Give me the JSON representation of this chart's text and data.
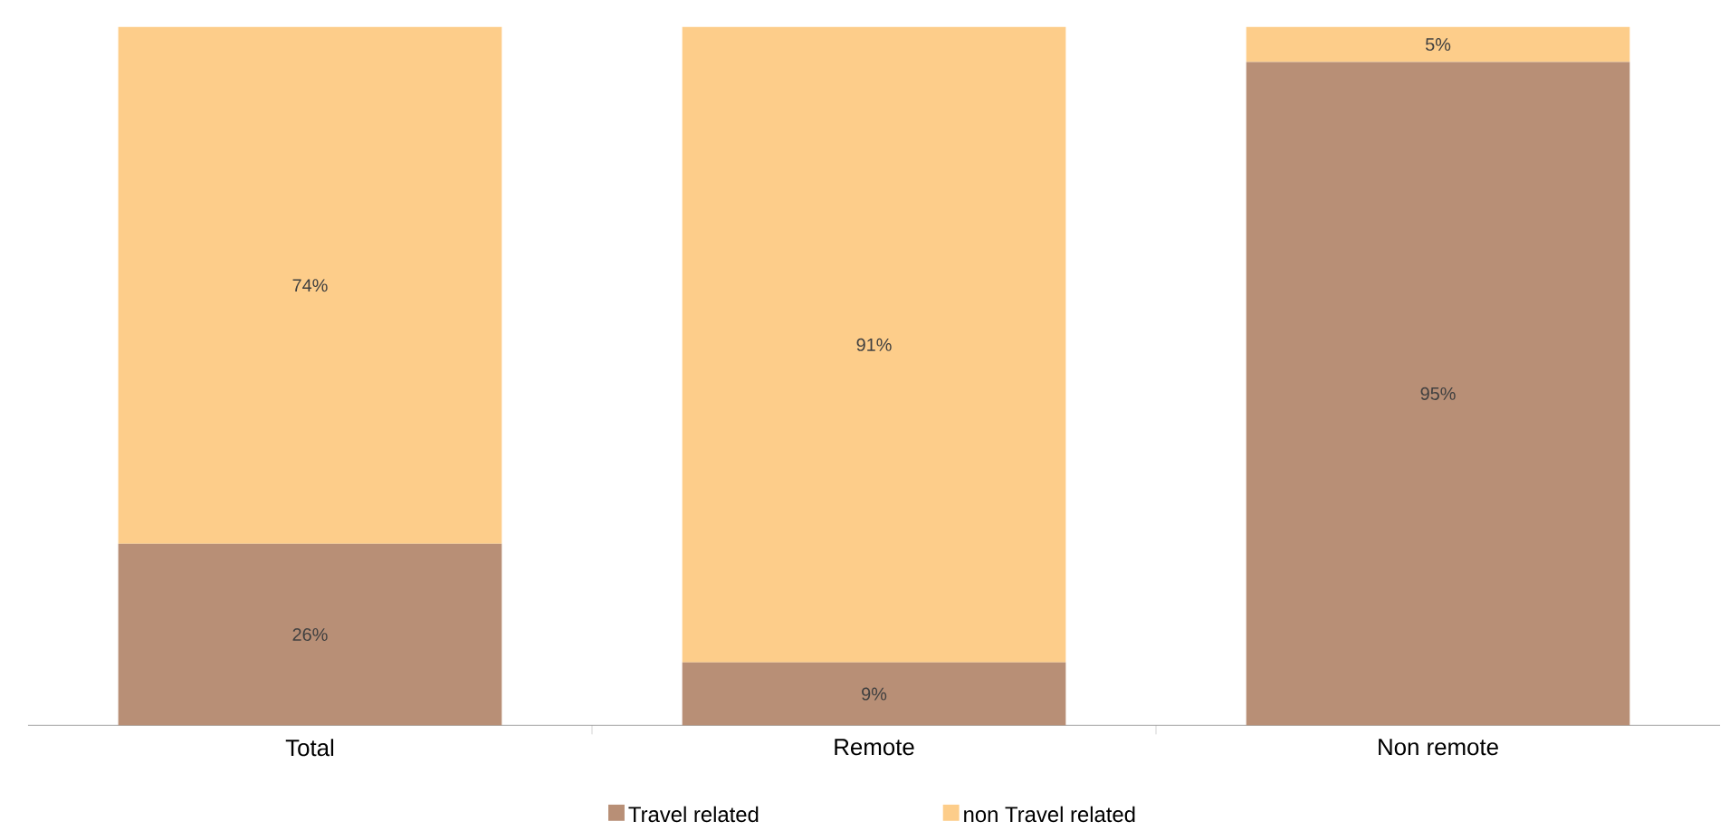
{
  "chart_data": {
    "type": "bar",
    "stacked": true,
    "categories": [
      "Total",
      "Remote",
      "Non remote"
    ],
    "ylim": [
      0,
      100
    ],
    "series": [
      {
        "name": "Travel related",
        "color": "#b88f76",
        "values": [
          26,
          9,
          95
        ],
        "value_labels": [
          "26%",
          "9%",
          "95%"
        ]
      },
      {
        "name": "non Travel related",
        "color": "#fdcd8a",
        "values": [
          74,
          91,
          5
        ],
        "value_labels": [
          "74%",
          "91%",
          "5%"
        ]
      }
    ],
    "legend": "bottom"
  }
}
